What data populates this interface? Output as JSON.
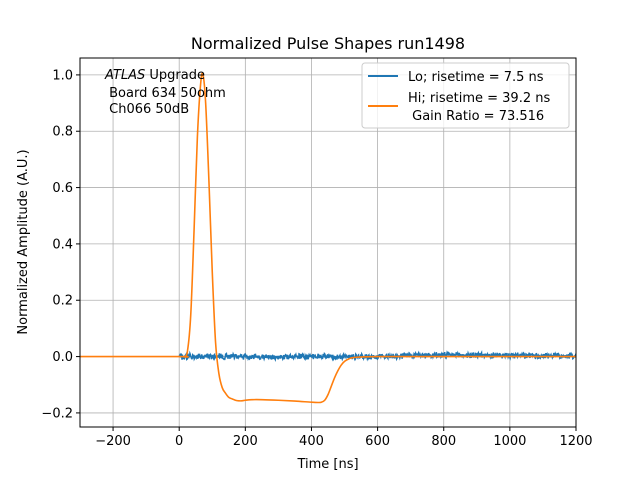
{
  "chart_data": {
    "type": "line",
    "title": "Normalized Pulse Shapes run1498",
    "xlabel": "Time [ns]",
    "ylabel": "Normalized Amplitude (A.U.)",
    "xlim": [
      -300,
      1200
    ],
    "ylim": [
      -0.25,
      1.06
    ],
    "grid": true,
    "x_ticks": [
      -200,
      0,
      200,
      400,
      600,
      800,
      1000,
      1200
    ],
    "x_tick_labels": [
      "−200",
      "0",
      "200",
      "400",
      "600",
      "800",
      "1000",
      "1200"
    ],
    "y_ticks": [
      -0.2,
      0.0,
      0.2,
      0.4,
      0.6,
      0.8,
      1.0
    ],
    "y_tick_labels": [
      "−0.2",
      "0.0",
      "0.2",
      "0.4",
      "0.6",
      "0.8",
      "1.0"
    ],
    "legend_position": "top-right",
    "annotation": {
      "italic": "ATLAS",
      "line1_rest": " Upgrade",
      "line2": " Board 634 50ohm",
      "line3": " Ch066 50dB"
    },
    "series": [
      {
        "name": "Lo; risetime = 7.5 ns",
        "color": "#1f77b4",
        "noise_amplitude": 0.008,
        "x": [
          0,
          200,
          400,
          600,
          700,
          800,
          900,
          1000,
          1100,
          1200
        ],
        "y": [
          0.0,
          0.0,
          0.0,
          0.0,
          0.005,
          0.005,
          0.005,
          0.003,
          0.003,
          0.003
        ]
      },
      {
        "name": "Hi; risetime = 39.2 ns",
        "name_line2": " Gain Ratio = 73.516",
        "color": "#ff7f0e",
        "x": [
          -300,
          0,
          15,
          25,
          35,
          45,
          55,
          65,
          72,
          80,
          90,
          100,
          110,
          120,
          130,
          140,
          150,
          160,
          170,
          180,
          190,
          200,
          220,
          250,
          300,
          350,
          400,
          420,
          430,
          440,
          450,
          460,
          470,
          480,
          490,
          500,
          510,
          520,
          540,
          560,
          600,
          700,
          800,
          900,
          1000,
          1100,
          1200
        ],
        "y": [
          0.0,
          0.0,
          0.0,
          0.02,
          0.15,
          0.45,
          0.78,
          0.97,
          1.0,
          0.9,
          0.62,
          0.3,
          0.05,
          -0.06,
          -0.11,
          -0.13,
          -0.145,
          -0.15,
          -0.155,
          -0.157,
          -0.157,
          -0.155,
          -0.153,
          -0.153,
          -0.155,
          -0.158,
          -0.162,
          -0.163,
          -0.162,
          -0.155,
          -0.135,
          -0.105,
          -0.075,
          -0.05,
          -0.03,
          -0.017,
          -0.01,
          -0.005,
          -0.002,
          -0.001,
          0.0,
          0.0,
          0.0,
          0.0,
          0.0,
          0.0,
          0.0
        ]
      }
    ]
  }
}
